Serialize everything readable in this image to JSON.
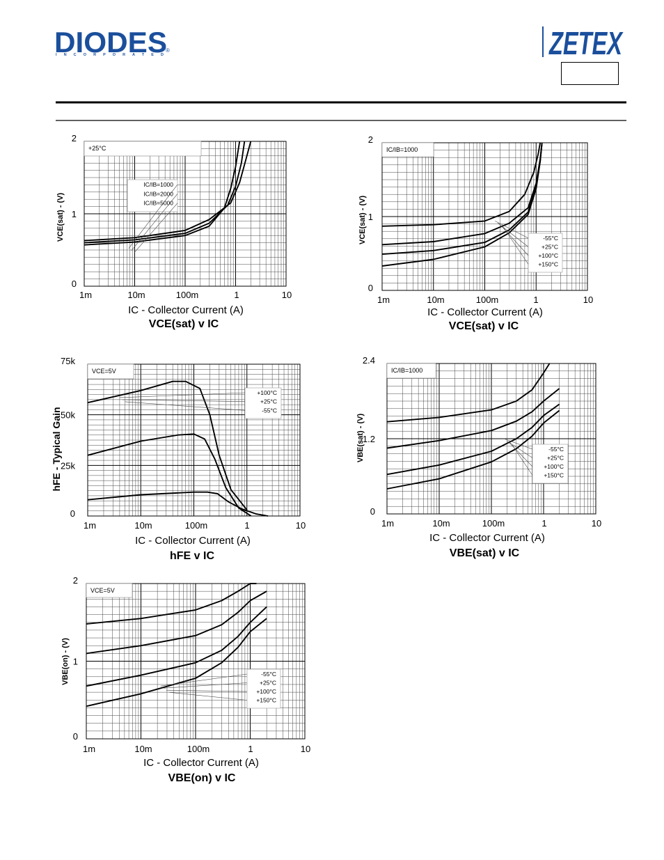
{
  "header": {
    "left_logo": {
      "name": "DIODES",
      "sub": "I N C O R P O R A T E D",
      "reg": "®",
      "color": "#1b4f9c"
    },
    "right_logo": {
      "name": "ZETEX",
      "color": "#1b4f9c"
    }
  },
  "chart_data": [
    {
      "type": "line",
      "title": "VCE(sat) v IC",
      "xlabel": "IC - Collector Current (A)",
      "ylabel": "VCE(sat) - (V)",
      "x_scale": "log",
      "xlim": [
        0.001,
        10
      ],
      "ylim": [
        0,
        2
      ],
      "x_ticks": [
        "1m",
        "10m",
        "100m",
        "1",
        "10"
      ],
      "y_ticks": [
        "0",
        "1",
        "2"
      ],
      "grid": true,
      "condition_label": "+25°C",
      "legend_labels": [
        "IC/IB=1000",
        "IC/IB=2000",
        "IC/IB=5000"
      ],
      "series": [
        {
          "name": "IC/IB=1000",
          "x": [
            0.001,
            0.01,
            0.1,
            0.3,
            0.6,
            0.8,
            1.0,
            1.2
          ],
          "y": [
            0.57,
            0.61,
            0.7,
            0.83,
            1.08,
            1.35,
            1.65,
            2.0
          ]
        },
        {
          "name": "IC/IB=2000",
          "x": [
            0.001,
            0.01,
            0.1,
            0.3,
            0.7,
            1.0,
            1.3,
            1.5
          ],
          "y": [
            0.6,
            0.64,
            0.73,
            0.87,
            1.12,
            1.38,
            1.7,
            2.0
          ]
        },
        {
          "name": "IC/IB=5000",
          "x": [
            0.001,
            0.01,
            0.1,
            0.3,
            0.8,
            1.2,
            1.6,
            2.0
          ],
          "y": [
            0.63,
            0.67,
            0.77,
            0.92,
            1.15,
            1.43,
            1.75,
            2.0
          ]
        }
      ]
    },
    {
      "type": "line",
      "title": "VCE(sat) v IC",
      "xlabel": "IC - Collector Current (A)",
      "ylabel": "VCE(sat) - (V)",
      "x_scale": "log",
      "xlim": [
        0.001,
        10
      ],
      "ylim": [
        0,
        2
      ],
      "x_ticks": [
        "1m",
        "10m",
        "100m",
        "1",
        "10"
      ],
      "y_ticks": [
        "0",
        "1",
        "2"
      ],
      "grid": true,
      "condition_label": "IC/IB=1000",
      "legend_labels": [
        "-55°C",
        "+25°C",
        "+100°C",
        "+150°C"
      ],
      "series": [
        {
          "name": "-55°C",
          "x": [
            0.001,
            0.01,
            0.1,
            0.3,
            0.6,
            0.9,
            1.1,
            1.2
          ],
          "y": [
            0.87,
            0.89,
            0.94,
            1.07,
            1.3,
            1.6,
            1.85,
            2.0
          ]
        },
        {
          "name": "+25°C",
          "x": [
            0.001,
            0.01,
            0.1,
            0.3,
            0.7,
            1.0,
            1.2,
            1.3
          ],
          "y": [
            0.62,
            0.66,
            0.77,
            0.91,
            1.12,
            1.45,
            1.78,
            2.0
          ]
        },
        {
          "name": "+100°C",
          "x": [
            0.001,
            0.01,
            0.1,
            0.3,
            0.7,
            1.0,
            1.2,
            1.3
          ],
          "y": [
            0.49,
            0.54,
            0.65,
            0.82,
            1.06,
            1.4,
            1.75,
            2.0
          ]
        },
        {
          "name": "+150°C",
          "x": [
            0.001,
            0.01,
            0.1,
            0.3,
            0.7,
            1.0,
            1.2,
            1.3
          ],
          "y": [
            0.33,
            0.42,
            0.59,
            0.78,
            1.03,
            1.38,
            1.75,
            2.0
          ]
        }
      ]
    },
    {
      "type": "line",
      "title": "hFE v IC",
      "xlabel": "IC - Collector Current (A)",
      "ylabel": "hFE - Typical Gain",
      "x_scale": "log",
      "xlim": [
        0.001,
        10
      ],
      "ylim": [
        0,
        75000
      ],
      "x_ticks": [
        "1m",
        "10m",
        "100m",
        "1",
        "10"
      ],
      "y_ticks": [
        "0",
        "25k",
        "50k",
        "75k"
      ],
      "grid": true,
      "condition_label": "VCE=5V",
      "legend_labels": [
        "+100°C",
        "+25°C",
        "-55°C"
      ],
      "series": [
        {
          "name": "+100°C",
          "x": [
            0.001,
            0.01,
            0.04,
            0.07,
            0.13,
            0.2,
            0.3,
            0.5,
            1.0
          ],
          "y": [
            56000,
            62000,
            66500,
            66500,
            63000,
            50000,
            30000,
            13000,
            3000
          ]
        },
        {
          "name": "+25°C",
          "x": [
            0.001,
            0.01,
            0.05,
            0.1,
            0.16,
            0.25,
            0.4,
            0.7,
            1.2
          ],
          "y": [
            30000,
            37000,
            40000,
            40500,
            38000,
            28000,
            14000,
            4000,
            0
          ]
        },
        {
          "name": "-55°C",
          "x": [
            0.001,
            0.01,
            0.1,
            0.18,
            0.28,
            0.45,
            0.8,
            1.5,
            2.5
          ],
          "y": [
            8000,
            10500,
            11800,
            11800,
            11000,
            7000,
            3500,
            1000,
            0
          ]
        }
      ]
    },
    {
      "type": "line",
      "title": "VBE(sat) v IC",
      "xlabel": "IC - Collector Current (A)",
      "ylabel": "VBE(sat) - (V)",
      "x_scale": "log",
      "xlim": [
        0.001,
        10
      ],
      "ylim": [
        0,
        2.4
      ],
      "x_ticks": [
        "1m",
        "10m",
        "100m",
        "1",
        "10"
      ],
      "y_ticks": [
        "0",
        "1.2",
        "2.4"
      ],
      "grid": true,
      "condition_label": "IC/IB=1000",
      "legend_labels": [
        "-55°C",
        "+25°C",
        "+100°C",
        "+150°C"
      ],
      "series": [
        {
          "name": "-55°C",
          "x": [
            0.001,
            0.01,
            0.1,
            0.3,
            0.6,
            1.0,
            1.3
          ],
          "y": [
            1.47,
            1.54,
            1.66,
            1.8,
            1.98,
            2.25,
            2.4
          ]
        },
        {
          "name": "+25°C",
          "x": [
            0.001,
            0.01,
            0.1,
            0.3,
            0.6,
            1.0,
            2.0
          ],
          "y": [
            1.05,
            1.17,
            1.33,
            1.48,
            1.63,
            1.8,
            2.0
          ]
        },
        {
          "name": "+100°C",
          "x": [
            0.001,
            0.01,
            0.1,
            0.3,
            0.6,
            1.0,
            2.0
          ],
          "y": [
            0.63,
            0.78,
            1.0,
            1.2,
            1.38,
            1.57,
            1.75
          ]
        },
        {
          "name": "+150°C",
          "x": [
            0.001,
            0.01,
            0.1,
            0.3,
            0.6,
            1.0,
            2.0
          ],
          "y": [
            0.4,
            0.56,
            0.83,
            1.04,
            1.24,
            1.45,
            1.65
          ]
        }
      ]
    },
    {
      "type": "line",
      "title": "VBE(on) v IC",
      "xlabel": "IC - Collector Current (A)",
      "ylabel": "VBE(on) - (V)",
      "x_scale": "log",
      "xlim": [
        0.001,
        10
      ],
      "ylim": [
        0,
        2
      ],
      "x_ticks": [
        "1m",
        "10m",
        "100m",
        "1",
        "10"
      ],
      "y_ticks": [
        "0",
        "1",
        "2"
      ],
      "grid": true,
      "condition_label": "VCE=5V",
      "legend_labels": [
        "-55°C",
        "+25°C",
        "+100°C",
        "+150°C"
      ],
      "series": [
        {
          "name": "-55°C",
          "x": [
            0.001,
            0.01,
            0.1,
            0.3,
            0.6,
            1.0,
            1.3
          ],
          "y": [
            1.48,
            1.55,
            1.66,
            1.78,
            1.9,
            2.0,
            2.0
          ]
        },
        {
          "name": "+25°C",
          "x": [
            0.001,
            0.01,
            0.1,
            0.3,
            0.6,
            1.0,
            2.0
          ],
          "y": [
            1.1,
            1.2,
            1.33,
            1.47,
            1.63,
            1.78,
            1.9
          ]
        },
        {
          "name": "+100°C",
          "x": [
            0.001,
            0.01,
            0.1,
            0.3,
            0.6,
            1.0,
            2.0
          ],
          "y": [
            0.68,
            0.82,
            0.98,
            1.14,
            1.32,
            1.5,
            1.7
          ]
        },
        {
          "name": "+150°C",
          "x": [
            0.001,
            0.01,
            0.1,
            0.3,
            0.6,
            1.0,
            2.0
          ],
          "y": [
            0.42,
            0.58,
            0.78,
            0.98,
            1.18,
            1.38,
            1.55
          ]
        }
      ]
    }
  ]
}
